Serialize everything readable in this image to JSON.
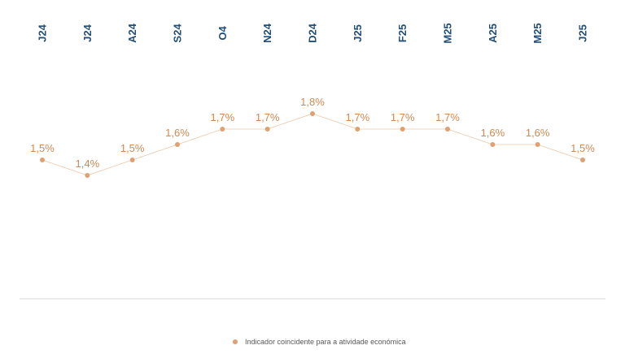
{
  "chart_data": {
    "type": "line",
    "categories": [
      "J24",
      "J24",
      "A24",
      "S24",
      "O4",
      "N24",
      "D24",
      "J25",
      "F25",
      "M25",
      "A25",
      "M25",
      "J25"
    ],
    "series": [
      {
        "name": "Indicador coincidente para a atividade económica",
        "values": [
          1.5,
          1.4,
          1.5,
          1.6,
          1.7,
          1.7,
          1.8,
          1.7,
          1.7,
          1.7,
          1.6,
          1.6,
          1.5
        ],
        "labels": [
          "1,5%",
          "1,4%",
          "1,5%",
          "1,6%",
          "1,7%",
          "1,7%",
          "1,8%",
          "1,7%",
          "1,7%",
          "1,7%",
          "1,6%",
          "1,6%",
          "1,5%"
        ]
      }
    ],
    "xlabel": "",
    "ylabel": "",
    "ylim": [
      0.6,
      2.2
    ],
    "grid": false,
    "legend_position": "bottom-center",
    "category_labels_position": "top",
    "colors": {
      "series": "#e0a070",
      "label": "#d08850",
      "category": "#1f4e79",
      "axis": "#d9d9d9",
      "legend_text": "#595959"
    }
  }
}
